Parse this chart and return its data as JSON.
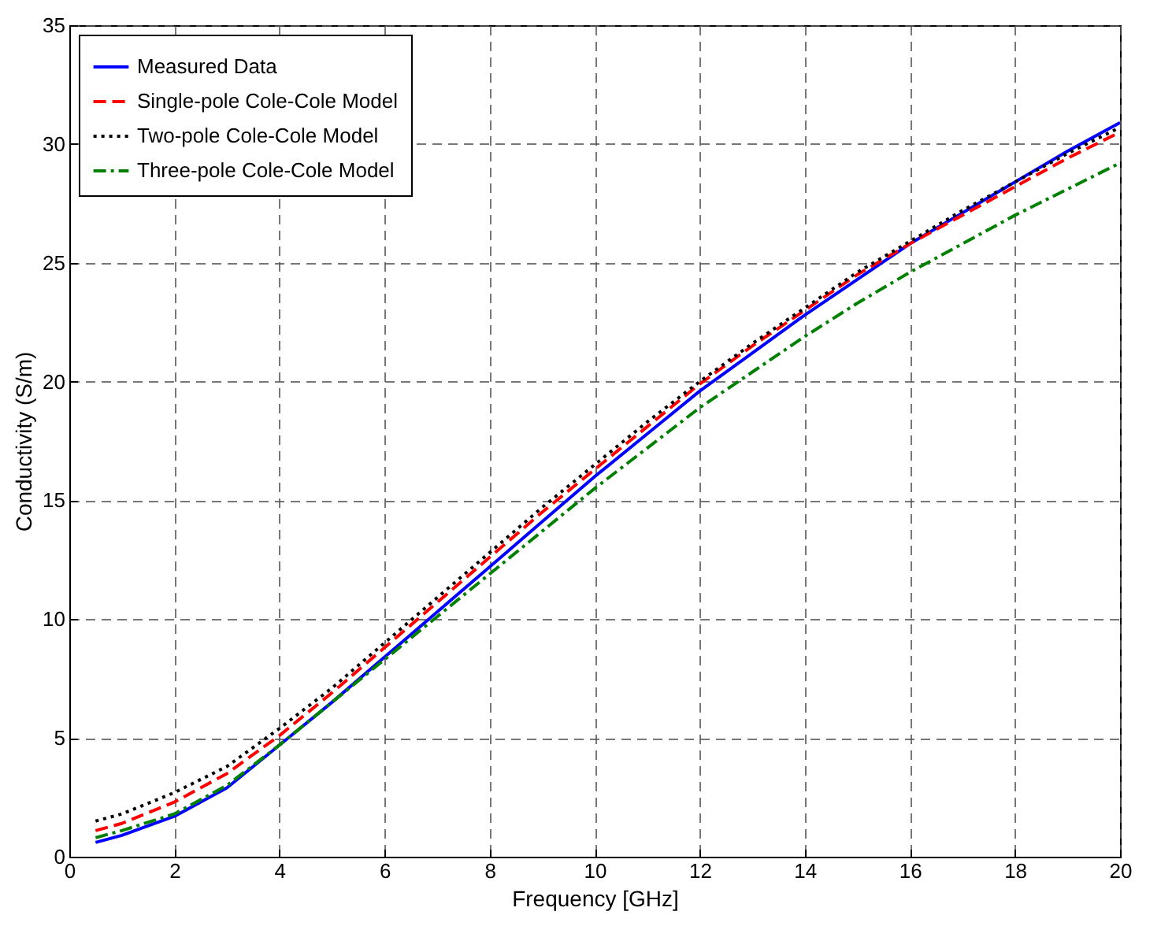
{
  "chart_data": {
    "type": "line",
    "xlabel": "Frequency [GHz]",
    "ylabel": "Conductivity (S/m)",
    "x": [
      0.5,
      1,
      2,
      3,
      4,
      5,
      6,
      7,
      8,
      9,
      10,
      11,
      12,
      13,
      14,
      15,
      16,
      17,
      18,
      19,
      20
    ],
    "series": [
      {
        "name": "Measured Data",
        "color": "#0000ff",
        "line_style": "solid",
        "values": [
          0.6,
          0.9,
          1.7,
          2.9,
          4.7,
          6.5,
          8.4,
          10.3,
          12.2,
          14.1,
          16.0,
          17.8,
          19.6,
          21.2,
          22.8,
          24.3,
          25.8,
          27.1,
          28.4,
          29.7,
          30.9
        ]
      },
      {
        "name": "Single-pole Cole-Cole Model",
        "color": "#ff0000",
        "line_style": "dashed",
        "values": [
          1.1,
          1.4,
          2.3,
          3.5,
          5.1,
          6.9,
          8.8,
          10.7,
          12.6,
          14.5,
          16.3,
          18.1,
          19.9,
          21.5,
          23.0,
          24.5,
          25.8,
          27.0,
          28.2,
          29.4,
          30.5
        ]
      },
      {
        "name": "Two-pole Cole-Cole Model",
        "color": "#000000",
        "line_style": "dotted",
        "values": [
          1.5,
          1.8,
          2.7,
          3.8,
          5.4,
          7.1,
          9.0,
          10.9,
          12.8,
          14.7,
          16.5,
          18.3,
          20.0,
          21.6,
          23.1,
          24.6,
          25.9,
          27.2,
          28.4,
          29.6,
          30.7
        ]
      },
      {
        "name": "Three-pole Cole-Cole Model",
        "color": "#008000",
        "line_style": "dashdot",
        "values": [
          0.8,
          1.1,
          1.8,
          3.0,
          4.7,
          6.5,
          8.3,
          10.1,
          11.9,
          13.7,
          15.5,
          17.2,
          18.9,
          20.4,
          21.9,
          23.3,
          24.6,
          25.8,
          27.0,
          28.1,
          29.2
        ]
      }
    ],
    "xlim": [
      0,
      20
    ],
    "xticks": [
      0,
      2,
      4,
      6,
      8,
      10,
      12,
      14,
      16,
      18,
      20
    ],
    "ylim": [
      0,
      35
    ],
    "yticks": [
      0,
      5,
      10,
      15,
      20,
      25,
      30,
      35
    ],
    "grid": true,
    "legend": "top left"
  }
}
